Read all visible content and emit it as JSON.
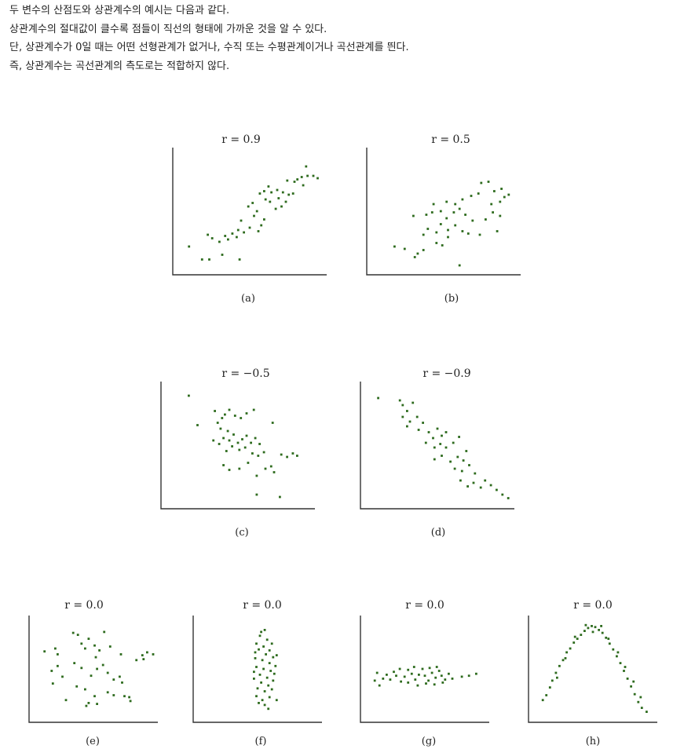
{
  "text": {
    "lines": [
      "두 변수의 산점도와 상관계수의 예시는 다음과 같다.",
      "상관계수의 절대값이 클수록 점들이 직선의 형태에 가까운 것을 알 수 있다.",
      "단, 상관계수가 0일 때는 어떤 선형관계가 없거나, 수직 또는 수평관계이거나 곡선관계를 띈다.",
      "즉, 상관계수는 곡선관계의 측도로는 적합하지 않다."
    ]
  },
  "colors": {
    "point": "#2e6b1e",
    "axis": "#333333",
    "text": "#222222"
  },
  "chart_data": [
    {
      "type": "scatter",
      "title": "r = 0.9",
      "caption": "(a)",
      "xlim": [
        0,
        10
      ],
      "ylim": [
        0,
        10
      ],
      "points": [
        [
          0.8,
          2.0
        ],
        [
          1.7,
          0.9
        ],
        [
          2.2,
          0.9
        ],
        [
          3.1,
          1.3
        ],
        [
          4.3,
          0.9
        ],
        [
          2.1,
          3.0
        ],
        [
          2.4,
          2.7
        ],
        [
          2.9,
          2.4
        ],
        [
          3.3,
          2.9
        ],
        [
          3.5,
          2.6
        ],
        [
          3.8,
          3.1
        ],
        [
          4.2,
          3.4
        ],
        [
          4.1,
          2.8
        ],
        [
          4.6,
          3.2
        ],
        [
          4.4,
          4.2
        ],
        [
          5.0,
          3.6
        ],
        [
          5.3,
          4.6
        ],
        [
          5.6,
          3.3
        ],
        [
          5.8,
          3.8
        ],
        [
          6.0,
          4.3
        ],
        [
          4.9,
          5.4
        ],
        [
          5.2,
          5.7
        ],
        [
          5.5,
          5.0
        ],
        [
          6.1,
          6.0
        ],
        [
          6.4,
          5.8
        ],
        [
          6.8,
          5.2
        ],
        [
          7.0,
          6.1
        ],
        [
          7.2,
          5.4
        ],
        [
          7.5,
          5.8
        ],
        [
          5.7,
          6.5
        ],
        [
          6.0,
          6.7
        ],
        [
          6.5,
          6.6
        ],
        [
          6.9,
          6.8
        ],
        [
          7.3,
          6.6
        ],
        [
          7.7,
          6.4
        ],
        [
          8.0,
          6.5
        ],
        [
          7.6,
          7.6
        ],
        [
          8.1,
          7.5
        ],
        [
          8.3,
          7.7
        ],
        [
          8.6,
          7.9
        ],
        [
          9.0,
          8.0
        ],
        [
          9.4,
          8.0
        ],
        [
          9.7,
          7.8
        ],
        [
          8.7,
          7.2
        ],
        [
          8.9,
          8.8
        ],
        [
          6.3,
          7.1
        ]
      ]
    },
    {
      "type": "scatter",
      "title": "r = 0.5",
      "caption": "(b)",
      "xlim": [
        0,
        10
      ],
      "ylim": [
        0,
        10
      ],
      "points": [
        [
          1.6,
          2.0
        ],
        [
          2.3,
          1.8
        ],
        [
          3.0,
          1.1
        ],
        [
          3.2,
          1.4
        ],
        [
          3.6,
          1.7
        ],
        [
          4.5,
          2.3
        ],
        [
          4.9,
          2.1
        ],
        [
          5.3,
          2.8
        ],
        [
          6.1,
          0.4
        ],
        [
          3.6,
          3.0
        ],
        [
          3.9,
          3.5
        ],
        [
          4.5,
          3.2
        ],
        [
          4.8,
          3.9
        ],
        [
          5.3,
          3.4
        ],
        [
          5.8,
          3.8
        ],
        [
          6.3,
          3.3
        ],
        [
          6.7,
          3.1
        ],
        [
          7.5,
          3.0
        ],
        [
          7.0,
          4.2
        ],
        [
          2.9,
          4.6
        ],
        [
          3.8,
          4.7
        ],
        [
          4.2,
          4.9
        ],
        [
          4.8,
          5.0
        ],
        [
          5.2,
          4.4
        ],
        [
          5.7,
          4.9
        ],
        [
          6.1,
          5.2
        ],
        [
          6.5,
          4.7
        ],
        [
          7.9,
          4.3
        ],
        [
          8.4,
          4.9
        ],
        [
          8.7,
          3.3
        ],
        [
          8.9,
          4.6
        ],
        [
          4.3,
          5.6
        ],
        [
          5.2,
          5.8
        ],
        [
          5.8,
          5.6
        ],
        [
          6.3,
          6.0
        ],
        [
          6.9,
          6.3
        ],
        [
          7.4,
          6.5
        ],
        [
          8.3,
          5.6
        ],
        [
          8.9,
          5.8
        ],
        [
          9.2,
          6.2
        ],
        [
          9.5,
          6.4
        ],
        [
          8.5,
          6.7
        ],
        [
          9.0,
          6.9
        ],
        [
          7.6,
          7.4
        ],
        [
          8.1,
          7.5
        ]
      ]
    },
    {
      "type": "scatter",
      "title": "r = −0.5",
      "caption": "(c)",
      "xlim": [
        0,
        10
      ],
      "ylim": [
        0,
        10
      ],
      "points": [
        [
          1.6,
          9.2
        ],
        [
          2.2,
          6.7
        ],
        [
          3.4,
          7.9
        ],
        [
          3.6,
          6.9
        ],
        [
          3.9,
          7.3
        ],
        [
          4.1,
          7.6
        ],
        [
          4.4,
          8.0
        ],
        [
          3.8,
          6.4
        ],
        [
          4.3,
          6.2
        ],
        [
          4.8,
          7.5
        ],
        [
          5.2,
          7.3
        ],
        [
          5.6,
          7.7
        ],
        [
          6.1,
          8.0
        ],
        [
          3.3,
          5.4
        ],
        [
          3.7,
          5.1
        ],
        [
          4.0,
          5.6
        ],
        [
          4.4,
          5.4
        ],
        [
          4.7,
          5.9
        ],
        [
          5.0,
          5.2
        ],
        [
          5.3,
          5.5
        ],
        [
          5.6,
          5.8
        ],
        [
          5.9,
          5.2
        ],
        [
          6.2,
          5.6
        ],
        [
          6.5,
          5.1
        ],
        [
          4.2,
          4.5
        ],
        [
          4.6,
          4.9
        ],
        [
          5.1,
          4.6
        ],
        [
          5.5,
          4.8
        ],
        [
          6.0,
          4.3
        ],
        [
          6.4,
          4.1
        ],
        [
          6.8,
          4.4
        ],
        [
          7.4,
          6.9
        ],
        [
          4.0,
          3.3
        ],
        [
          4.4,
          2.9
        ],
        [
          5.1,
          3.0
        ],
        [
          5.7,
          3.5
        ],
        [
          6.3,
          2.4
        ],
        [
          6.9,
          3.0
        ],
        [
          7.3,
          3.2
        ],
        [
          7.5,
          2.7
        ],
        [
          8.0,
          4.2
        ],
        [
          8.4,
          4.0
        ],
        [
          8.8,
          4.3
        ],
        [
          9.1,
          4.1
        ],
        [
          6.3,
          0.8
        ],
        [
          7.9,
          0.6
        ]
      ]
    },
    {
      "type": "scatter",
      "title": "r = −0.9",
      "caption": "(d)",
      "xlim": [
        0,
        10
      ],
      "ylim": [
        0,
        10
      ],
      "points": [
        [
          0.9,
          9.0
        ],
        [
          2.4,
          8.8
        ],
        [
          2.6,
          8.4
        ],
        [
          2.9,
          7.9
        ],
        [
          3.3,
          8.6
        ],
        [
          2.6,
          7.4
        ],
        [
          3.1,
          7.0
        ],
        [
          3.6,
          7.4
        ],
        [
          2.9,
          6.6
        ],
        [
          3.7,
          6.3
        ],
        [
          4.0,
          6.9
        ],
        [
          4.4,
          6.1
        ],
        [
          4.7,
          5.6
        ],
        [
          5.0,
          6.4
        ],
        [
          5.3,
          5.8
        ],
        [
          5.6,
          6.1
        ],
        [
          4.2,
          5.2
        ],
        [
          4.8,
          4.8
        ],
        [
          5.2,
          5.1
        ],
        [
          5.6,
          4.8
        ],
        [
          6.1,
          5.2
        ],
        [
          6.5,
          5.7
        ],
        [
          4.8,
          3.8
        ],
        [
          5.3,
          4.1
        ],
        [
          5.9,
          3.6
        ],
        [
          6.4,
          4.0
        ],
        [
          6.8,
          3.7
        ],
        [
          7.0,
          4.5
        ],
        [
          6.2,
          3.0
        ],
        [
          6.7,
          2.8
        ],
        [
          7.2,
          3.3
        ],
        [
          7.6,
          2.6
        ],
        [
          6.6,
          2.0
        ],
        [
          7.1,
          1.5
        ],
        [
          7.5,
          1.8
        ],
        [
          8.0,
          1.4
        ],
        [
          8.3,
          2.0
        ],
        [
          8.7,
          1.6
        ],
        [
          9.1,
          1.2
        ],
        [
          9.5,
          0.8
        ],
        [
          9.9,
          0.5
        ]
      ]
    },
    {
      "type": "scatter",
      "title": "r = 0.0",
      "caption": "(e)",
      "xlim": [
        0,
        10
      ],
      "ylim": [
        0,
        10
      ],
      "points": [
        [
          0.9,
          6.8
        ],
        [
          1.8,
          7.1
        ],
        [
          2.0,
          6.5
        ],
        [
          1.5,
          4.8
        ],
        [
          2.0,
          5.3
        ],
        [
          2.4,
          4.2
        ],
        [
          1.6,
          3.5
        ],
        [
          3.3,
          8.7
        ],
        [
          3.7,
          8.5
        ],
        [
          4.0,
          7.6
        ],
        [
          4.3,
          7.1
        ],
        [
          4.6,
          8.1
        ],
        [
          5.1,
          7.4
        ],
        [
          5.5,
          6.9
        ],
        [
          5.2,
          6.2
        ],
        [
          5.9,
          8.8
        ],
        [
          6.4,
          7.3
        ],
        [
          7.3,
          6.5
        ],
        [
          3.4,
          5.6
        ],
        [
          4.0,
          5.1
        ],
        [
          4.8,
          4.3
        ],
        [
          5.3,
          5.0
        ],
        [
          5.8,
          5.4
        ],
        [
          6.2,
          4.6
        ],
        [
          6.7,
          3.9
        ],
        [
          7.2,
          4.2
        ],
        [
          3.6,
          3.2
        ],
        [
          4.3,
          2.9
        ],
        [
          5.1,
          2.2
        ],
        [
          6.2,
          2.6
        ],
        [
          6.7,
          2.3
        ],
        [
          7.4,
          3.6
        ],
        [
          7.6,
          2.2
        ],
        [
          8.0,
          2.1
        ],
        [
          8.1,
          1.7
        ],
        [
          2.7,
          1.8
        ],
        [
          4.6,
          1.5
        ],
        [
          5.3,
          1.4
        ],
        [
          4.4,
          1.2
        ],
        [
          8.6,
          5.9
        ],
        [
          9.1,
          6.4
        ],
        [
          9.5,
          6.7
        ],
        [
          10.0,
          6.5
        ],
        [
          9.2,
          6.0
        ]
      ]
    },
    {
      "type": "scatter",
      "title": "r = 0.0",
      "caption": "(f)",
      "xlim": [
        0,
        10
      ],
      "ylim": [
        0,
        10
      ],
      "points": [
        [
          5.6,
          9.0
        ],
        [
          5.2,
          8.4
        ],
        [
          5.8,
          8.0
        ],
        [
          4.9,
          7.6
        ],
        [
          5.5,
          7.3
        ],
        [
          6.0,
          6.9
        ],
        [
          5.1,
          7.0
        ],
        [
          5.7,
          6.5
        ],
        [
          6.3,
          6.2
        ],
        [
          4.8,
          6.1
        ],
        [
          5.4,
          5.9
        ],
        [
          6.0,
          5.6
        ],
        [
          6.6,
          6.4
        ],
        [
          4.9,
          5.2
        ],
        [
          5.5,
          5.0
        ],
        [
          6.1,
          4.8
        ],
        [
          5.2,
          4.4
        ],
        [
          5.8,
          4.1
        ],
        [
          6.4,
          4.5
        ],
        [
          4.7,
          4.0
        ],
        [
          5.3,
          3.6
        ],
        [
          5.9,
          3.3
        ],
        [
          5.0,
          3.0
        ],
        [
          5.6,
          2.7
        ],
        [
          6.2,
          2.9
        ],
        [
          4.9,
          2.2
        ],
        [
          5.4,
          1.8
        ],
        [
          6.0,
          2.1
        ],
        [
          5.6,
          1.3
        ],
        [
          6.6,
          1.8
        ],
        [
          5.9,
          0.9
        ],
        [
          5.3,
          8.8
        ],
        [
          6.2,
          7.6
        ],
        [
          4.8,
          6.7
        ],
        [
          6.5,
          5.3
        ],
        [
          4.7,
          4.7
        ],
        [
          6.3,
          3.8
        ],
        [
          5.1,
          1.5
        ]
      ]
    },
    {
      "type": "scatter",
      "title": "r = 0.0",
      "caption": "(g)",
      "xlim": [
        0,
        10
      ],
      "ylim": [
        0,
        10
      ],
      "points": [
        [
          0.8,
          3.8
        ],
        [
          1.0,
          4.6
        ],
        [
          1.5,
          4.0
        ],
        [
          1.8,
          4.4
        ],
        [
          2.1,
          3.9
        ],
        [
          2.4,
          4.7
        ],
        [
          2.6,
          4.3
        ],
        [
          3.0,
          3.7
        ],
        [
          3.3,
          4.2
        ],
        [
          3.6,
          4.9
        ],
        [
          3.9,
          4.5
        ],
        [
          4.2,
          3.9
        ],
        [
          4.5,
          4.4
        ],
        [
          4.8,
          5.0
        ],
        [
          5.0,
          4.3
        ],
        [
          5.3,
          3.8
        ],
        [
          5.6,
          4.6
        ],
        [
          5.9,
          4.1
        ],
        [
          6.2,
          4.8
        ],
        [
          6.4,
          4.3
        ],
        [
          6.7,
          3.9
        ],
        [
          7.0,
          4.5
        ],
        [
          7.3,
          4.0
        ],
        [
          3.6,
          3.6
        ],
        [
          4.4,
          3.3
        ],
        [
          5.1,
          3.5
        ],
        [
          5.8,
          3.4
        ],
        [
          6.5,
          3.6
        ],
        [
          2.9,
          5.0
        ],
        [
          4.1,
          5.2
        ],
        [
          5.4,
          5.1
        ],
        [
          6.0,
          5.2
        ],
        [
          8.1,
          4.2
        ],
        [
          8.7,
          4.3
        ],
        [
          9.3,
          4.5
        ],
        [
          1.2,
          3.3
        ]
      ]
    },
    {
      "type": "scatter",
      "title": "r = 0.0",
      "caption": "(h)",
      "xlim": [
        0,
        10
      ],
      "ylim": [
        0,
        10
      ],
      "points": [
        [
          0.8,
          1.8
        ],
        [
          1.1,
          2.3
        ],
        [
          1.4,
          3.1
        ],
        [
          1.6,
          3.8
        ],
        [
          1.9,
          4.6
        ],
        [
          2.2,
          5.3
        ],
        [
          2.5,
          5.9
        ],
        [
          2.8,
          6.7
        ],
        [
          3.1,
          7.1
        ],
        [
          3.4,
          7.7
        ],
        [
          3.7,
          8.1
        ],
        [
          4.0,
          8.5
        ],
        [
          4.3,
          8.9
        ],
        [
          4.6,
          9.2
        ],
        [
          4.9,
          9.4
        ],
        [
          5.2,
          9.3
        ],
        [
          5.5,
          9.0
        ],
        [
          5.8,
          8.7
        ],
        [
          6.1,
          8.2
        ],
        [
          6.4,
          7.6
        ],
        [
          6.7,
          7.0
        ],
        [
          7.0,
          6.3
        ],
        [
          7.3,
          5.6
        ],
        [
          7.6,
          4.8
        ],
        [
          7.9,
          4.0
        ],
        [
          8.2,
          3.2
        ],
        [
          8.5,
          2.4
        ],
        [
          8.8,
          1.6
        ],
        [
          9.1,
          1.0
        ],
        [
          9.5,
          0.6
        ],
        [
          2.0,
          4.1
        ],
        [
          2.7,
          6.1
        ],
        [
          3.5,
          8.3
        ],
        [
          4.4,
          9.5
        ],
        [
          5.0,
          8.8
        ],
        [
          5.7,
          9.4
        ],
        [
          6.3,
          8.1
        ],
        [
          7.1,
          6.7
        ],
        [
          7.7,
          5.2
        ],
        [
          8.4,
          3.7
        ],
        [
          9.0,
          2.1
        ]
      ]
    }
  ]
}
